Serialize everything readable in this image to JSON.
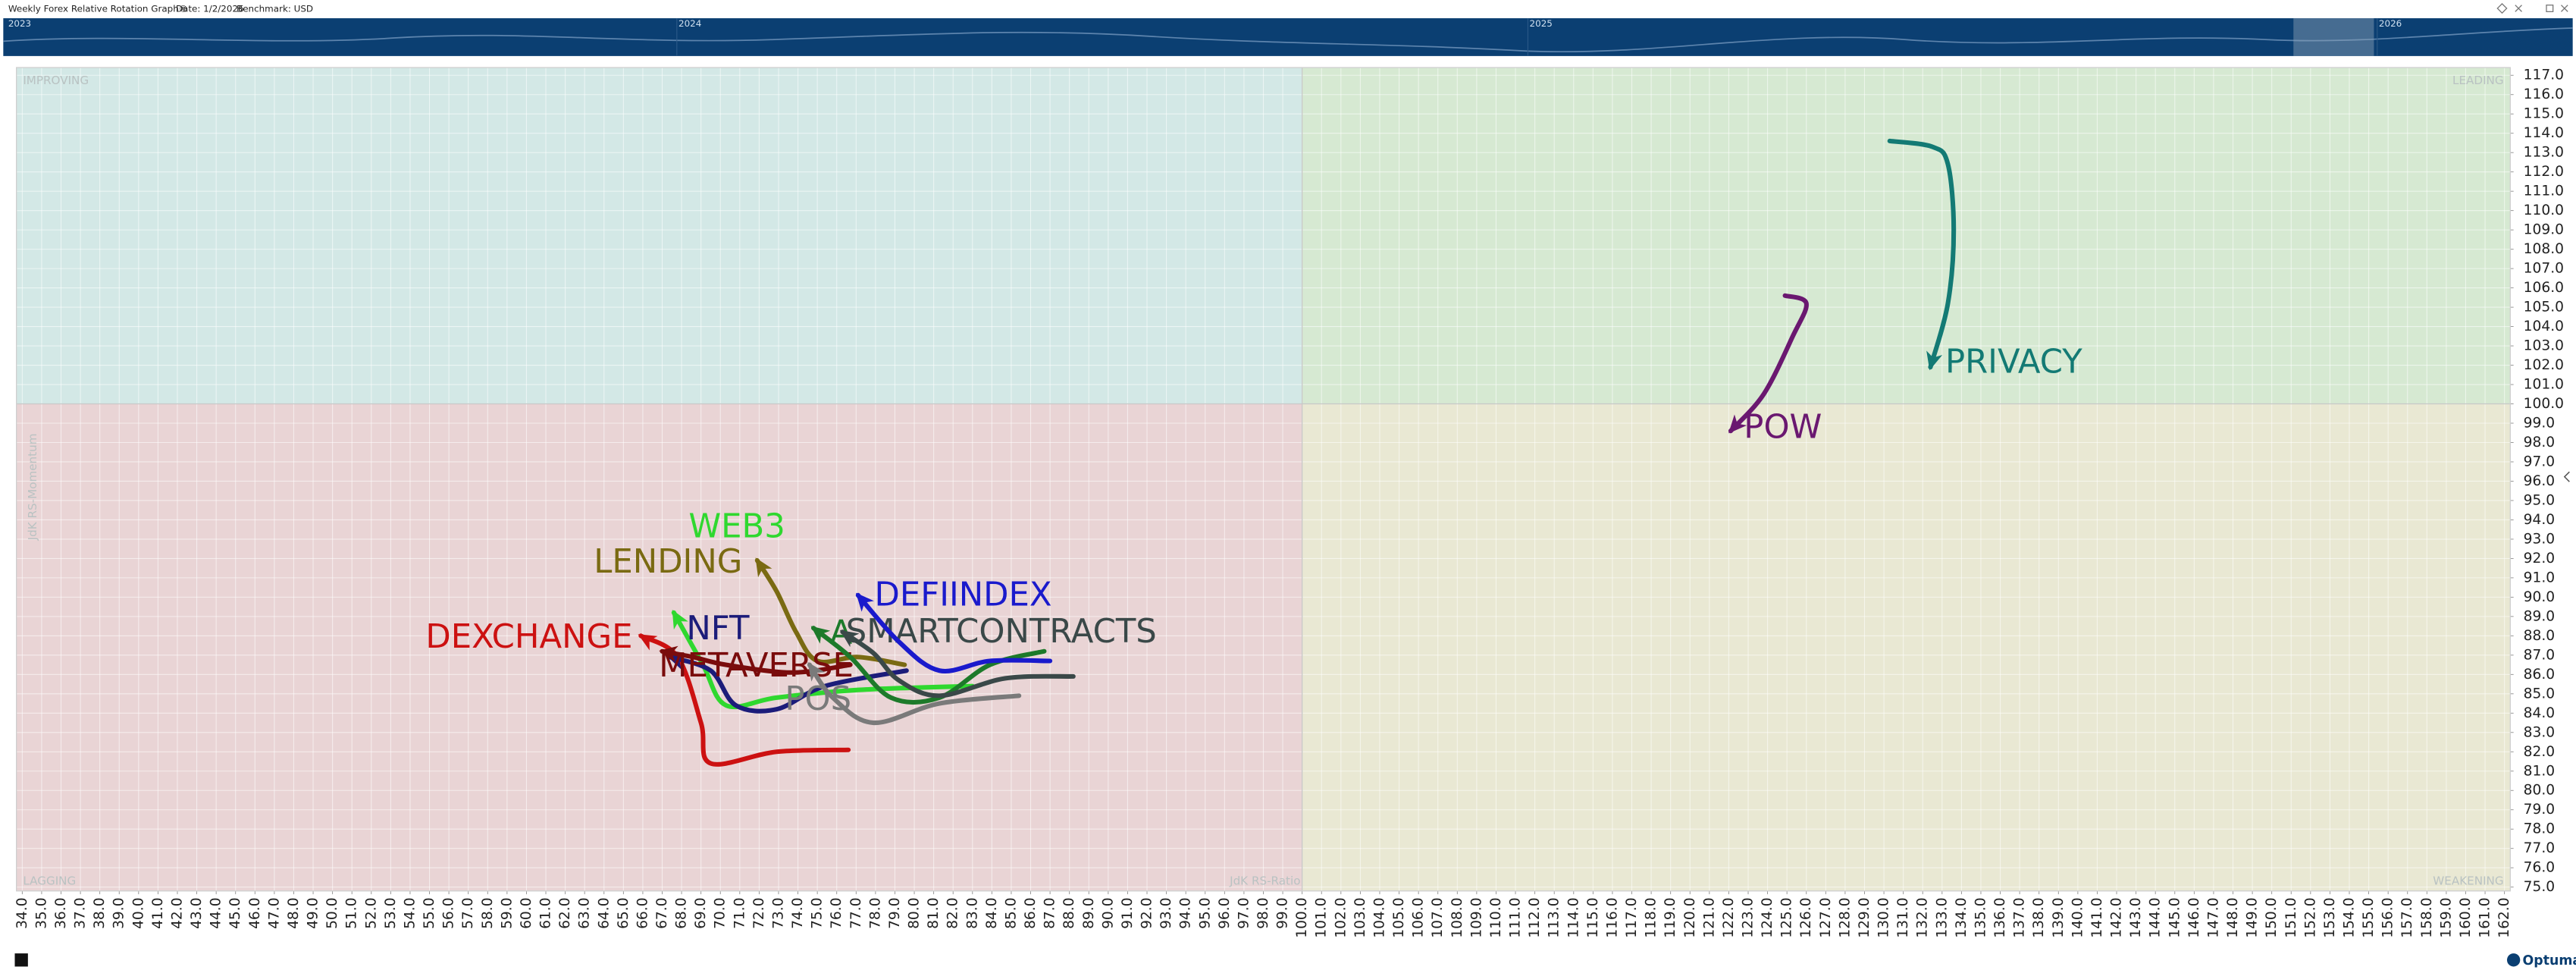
{
  "header": {
    "title": "Weekly Forex Relative Rotation Graph®",
    "date": "Date: 1/2/2026",
    "benchmark": "Benchmark:  USD"
  },
  "navigator": {
    "years": [
      "2023",
      "2024",
      "2025",
      "2026"
    ]
  },
  "chart_data": {
    "type": "rrg",
    "x_label": "JdK RS-Ratio",
    "y_label": "JdK RS-Momentum",
    "quadrants": {
      "improving": "IMPROVING",
      "leading": "LEADING",
      "lagging": "LAGGING",
      "weakening": "WEAKENING"
    },
    "center": [
      100,
      100
    ],
    "xlim": [
      33.7,
      162.3
    ],
    "ylim": [
      74.8,
      117.4
    ],
    "grid": true,
    "xticks": [
      {
        "value": 34,
        "label": "34.0"
      },
      {
        "value": 35,
        "label": "35.0"
      },
      {
        "value": 36,
        "label": "36.0"
      },
      {
        "value": 37,
        "label": "37.0"
      },
      {
        "value": 38,
        "label": "38.0"
      },
      {
        "value": 39,
        "label": "39.0"
      },
      {
        "value": 40,
        "label": "40.0"
      },
      {
        "value": 41,
        "label": "41.0"
      },
      {
        "value": 42,
        "label": "42.0"
      },
      {
        "value": 43,
        "label": "43.0"
      },
      {
        "value": 44,
        "label": "44.0"
      },
      {
        "value": 45,
        "label": "45.0"
      },
      {
        "value": 46,
        "label": "46.0"
      },
      {
        "value": 47,
        "label": "47.0"
      },
      {
        "value": 48,
        "label": "48.0"
      },
      {
        "value": 49,
        "label": "49.0"
      },
      {
        "value": 50,
        "label": "50.0"
      },
      {
        "value": 51,
        "label": "51.0"
      },
      {
        "value": 52,
        "label": "52.0"
      },
      {
        "value": 53,
        "label": "53.0"
      },
      {
        "value": 54,
        "label": "54.0"
      },
      {
        "value": 55,
        "label": "55.0"
      },
      {
        "value": 56,
        "label": "56.0"
      },
      {
        "value": 57,
        "label": "57.0"
      },
      {
        "value": 58,
        "label": "58.0"
      },
      {
        "value": 59,
        "label": "59.0"
      },
      {
        "value": 60,
        "label": "60.0"
      },
      {
        "value": 61,
        "label": "61.0"
      },
      {
        "value": 62,
        "label": "62.0"
      },
      {
        "value": 63,
        "label": "63.0"
      },
      {
        "value": 64,
        "label": "64.0"
      },
      {
        "value": 65,
        "label": "65.0"
      },
      {
        "value": 66,
        "label": "66.0"
      },
      {
        "value": 67,
        "label": "67.0"
      },
      {
        "value": 68,
        "label": "68.0"
      },
      {
        "value": 69,
        "label": "69.0"
      },
      {
        "value": 70,
        "label": "70.0"
      },
      {
        "value": 71,
        "label": "71.0"
      },
      {
        "value": 72,
        "label": "72.0"
      },
      {
        "value": 73,
        "label": "73.0"
      },
      {
        "value": 74,
        "label": "74.0"
      },
      {
        "value": 75,
        "label": "75.0"
      },
      {
        "value": 76,
        "label": "76.0"
      },
      {
        "value": 77,
        "label": "77.0"
      },
      {
        "value": 78,
        "label": "78.0"
      },
      {
        "value": 79,
        "label": "79.0"
      },
      {
        "value": 80,
        "label": "80.0"
      },
      {
        "value": 81,
        "label": "81.0"
      },
      {
        "value": 82,
        "label": "82.0"
      },
      {
        "value": 83,
        "label": "83.0"
      },
      {
        "value": 84,
        "label": "84.0"
      },
      {
        "value": 85,
        "label": "85.0"
      },
      {
        "value": 86,
        "label": "86.0"
      },
      {
        "value": 87,
        "label": "87.0"
      },
      {
        "value": 88,
        "label": "88.0"
      },
      {
        "value": 89,
        "label": "89.0"
      },
      {
        "value": 90,
        "label": "90.0"
      },
      {
        "value": 91,
        "label": "91.0"
      },
      {
        "value": 92,
        "label": "92.0"
      },
      {
        "value": 93,
        "label": "93.0"
      },
      {
        "value": 94,
        "label": "94.0"
      },
      {
        "value": 95,
        "label": "95.0"
      },
      {
        "value": 96,
        "label": "96.0"
      },
      {
        "value": 97,
        "label": "97.0"
      },
      {
        "value": 98,
        "label": "98.0"
      },
      {
        "value": 99,
        "label": "99.0"
      },
      {
        "value": 100,
        "label": "100.0"
      },
      {
        "value": 101,
        "label": "101.0"
      },
      {
        "value": 102,
        "label": "102.0"
      },
      {
        "value": 103,
        "label": "103.0"
      },
      {
        "value": 104,
        "label": "104.0"
      },
      {
        "value": 105,
        "label": "105.0"
      },
      {
        "value": 106,
        "label": "106.0"
      },
      {
        "value": 107,
        "label": "107.0"
      },
      {
        "value": 108,
        "label": "108.0"
      },
      {
        "value": 109,
        "label": "109.0"
      },
      {
        "value": 110,
        "label": "110.0"
      },
      {
        "value": 111,
        "label": "111.0"
      },
      {
        "value": 112,
        "label": "112.0"
      },
      {
        "value": 113,
        "label": "113.0"
      },
      {
        "value": 114,
        "label": "114.0"
      },
      {
        "value": 115,
        "label": "115.0"
      },
      {
        "value": 116,
        "label": "116.0"
      },
      {
        "value": 117,
        "label": "117.0"
      },
      {
        "value": 118,
        "label": "118.0"
      },
      {
        "value": 119,
        "label": "119.0"
      },
      {
        "value": 120,
        "label": "120.0"
      },
      {
        "value": 121,
        "label": "121.0"
      },
      {
        "value": 122,
        "label": "122.0"
      },
      {
        "value": 123,
        "label": "123.0"
      },
      {
        "value": 124,
        "label": "124.0"
      },
      {
        "value": 125,
        "label": "125.0"
      },
      {
        "value": 126,
        "label": "126.0"
      },
      {
        "value": 127,
        "label": "127.0"
      },
      {
        "value": 128,
        "label": "128.0"
      },
      {
        "value": 129,
        "label": "129.0"
      },
      {
        "value": 130,
        "label": "130.0"
      },
      {
        "value": 131,
        "label": "131.0"
      },
      {
        "value": 132,
        "label": "132.0"
      },
      {
        "value": 133,
        "label": "133.0"
      },
      {
        "value": 134,
        "label": "134.0"
      },
      {
        "value": 135,
        "label": "135.0"
      },
      {
        "value": 136,
        "label": "136.0"
      },
      {
        "value": 137,
        "label": "137.0"
      },
      {
        "value": 138,
        "label": "138.0"
      },
      {
        "value": 139,
        "label": "139.0"
      },
      {
        "value": 140,
        "label": "140.0"
      },
      {
        "value": 141,
        "label": "141.0"
      },
      {
        "value": 142,
        "label": "142.0"
      },
      {
        "value": 143,
        "label": "143.0"
      },
      {
        "value": 144,
        "label": "144.0"
      },
      {
        "value": 145,
        "label": "145.0"
      },
      {
        "value": 146,
        "label": "146.0"
      },
      {
        "value": 147,
        "label": "147.0"
      },
      {
        "value": 148,
        "label": "148.0"
      },
      {
        "value": 149,
        "label": "149.0"
      },
      {
        "value": 150,
        "label": "150.0"
      },
      {
        "value": 151,
        "label": "151.0"
      },
      {
        "value": 152,
        "label": "152.0"
      },
      {
        "value": 153,
        "label": "153.0"
      },
      {
        "value": 154,
        "label": "154.0"
      },
      {
        "value": 155,
        "label": "155.0"
      },
      {
        "value": 156,
        "label": "156.0"
      },
      {
        "value": 157,
        "label": "157.0"
      },
      {
        "value": 158,
        "label": "158.0"
      },
      {
        "value": 159,
        "label": "159.0"
      },
      {
        "value": 160,
        "label": "160.0"
      },
      {
        "value": 161,
        "label": "161.0"
      },
      {
        "value": 162,
        "label": "162.0"
      }
    ],
    "yticks": [
      {
        "value": 75,
        "label": "75.0"
      },
      {
        "value": 76,
        "label": "76.0"
      },
      {
        "value": 77,
        "label": "77.0"
      },
      {
        "value": 78,
        "label": "78.0"
      },
      {
        "value": 79,
        "label": "79.0"
      },
      {
        "value": 80,
        "label": "80.0"
      },
      {
        "value": 81,
        "label": "81.0"
      },
      {
        "value": 82,
        "label": "82.0"
      },
      {
        "value": 83,
        "label": "83.0"
      },
      {
        "value": 84,
        "label": "84.0"
      },
      {
        "value": 85,
        "label": "85.0"
      },
      {
        "value": 86,
        "label": "86.0"
      },
      {
        "value": 87,
        "label": "87.0"
      },
      {
        "value": 88,
        "label": "88.0"
      },
      {
        "value": 89,
        "label": "89.0"
      },
      {
        "value": 90,
        "label": "90.0"
      },
      {
        "value": 91,
        "label": "91.0"
      },
      {
        "value": 92,
        "label": "92.0"
      },
      {
        "value": 93,
        "label": "93.0"
      },
      {
        "value": 94,
        "label": "94.0"
      },
      {
        "value": 95,
        "label": "95.0"
      },
      {
        "value": 96,
        "label": "96.0"
      },
      {
        "value": 97,
        "label": "97.0"
      },
      {
        "value": 98,
        "label": "98.0"
      },
      {
        "value": 99,
        "label": "99.0"
      },
      {
        "value": 100,
        "label": "100.0"
      },
      {
        "value": 101,
        "label": "101.0"
      },
      {
        "value": 102,
        "label": "102.0"
      },
      {
        "value": 103,
        "label": "103.0"
      },
      {
        "value": 104,
        "label": "104.0"
      },
      {
        "value": 105,
        "label": "105.0"
      },
      {
        "value": 106,
        "label": "106.0"
      },
      {
        "value": 107,
        "label": "107.0"
      },
      {
        "value": 108,
        "label": "108.0"
      },
      {
        "value": 109,
        "label": "109.0"
      },
      {
        "value": 110,
        "label": "110.0"
      },
      {
        "value": 111,
        "label": "111.0"
      },
      {
        "value": 112,
        "label": "112.0"
      },
      {
        "value": 113,
        "label": "113.0"
      },
      {
        "value": 114,
        "label": "114.0"
      },
      {
        "value": 115,
        "label": "115.0"
      },
      {
        "value": 116,
        "label": "116.0"
      },
      {
        "value": 117,
        "label": "117.0"
      }
    ],
    "series": [
      {
        "name": "PRIVACY",
        "color": "#137a74",
        "x": [
          130.3,
          132.5,
          133.3,
          133.6,
          133.3,
          132.4
        ],
        "y": [
          113.6,
          113.3,
          112.4,
          109.0,
          105.2,
          101.9
        ]
      },
      {
        "name": "POW",
        "color": "#6a1870",
        "x": [
          124.9,
          126.0,
          125.3,
          123.8,
          122.1
        ],
        "y": [
          105.6,
          105.2,
          103.5,
          100.5,
          98.6
        ]
      },
      {
        "name": "WEB3",
        "color": "#2fd82f",
        "x": [
          83.0,
          77.1,
          72.9,
          70.3,
          69.1,
          67.6
        ],
        "y": [
          85.4,
          85.2,
          84.8,
          84.4,
          86.5,
          89.2
        ]
      },
      {
        "name": "LENDING",
        "color": "#7a6a12",
        "x": [
          79.5,
          77.1,
          75.0,
          73.9,
          72.9,
          71.9
        ],
        "y": [
          86.5,
          86.9,
          86.7,
          88.2,
          90.3,
          91.9
        ]
      },
      {
        "name": "DEXCHANGE",
        "color": "#cc1111",
        "x": [
          76.6,
          72.9,
          69.5,
          69.0,
          67.8,
          65.9
        ],
        "y": [
          82.1,
          82.0,
          81.4,
          83.5,
          86.9,
          88.0
        ]
      },
      {
        "name": "NFT",
        "color": "#1c1c7a",
        "x": [
          79.6,
          75.4,
          72.9,
          70.8,
          69.5,
          67.4
        ],
        "y": [
          86.2,
          85.4,
          84.2,
          84.4,
          86.2,
          86.9
        ]
      },
      {
        "name": "METAVERSE",
        "color": "#7a0c0c",
        "x": [
          76.7,
          73.7,
          70.3,
          68.6,
          67.0
        ],
        "y": [
          86.5,
          86.1,
          86.5,
          86.9,
          87.2
        ]
      },
      {
        "name": "POS",
        "color": "#7a7a7a",
        "x": [
          85.4,
          81.3,
          77.9,
          75.8,
          74.6
        ],
        "y": [
          84.9,
          84.5,
          83.5,
          84.8,
          86.5
        ]
      },
      {
        "name": "A",
        "color": "#1d7a2a",
        "x": [
          86.7,
          83.9,
          81.3,
          78.8,
          76.7,
          74.8
        ],
        "y": [
          87.2,
          86.5,
          84.8,
          84.8,
          86.9,
          88.4
        ]
      },
      {
        "name": "SMARTCONTRACTS",
        "color": "#3a4848",
        "x": [
          88.2,
          84.7,
          81.3,
          79.2,
          77.9,
          76.3
        ],
        "y": [
          85.9,
          85.8,
          84.9,
          85.7,
          87.1,
          88.2
        ]
      },
      {
        "name": "DEFIINDEX",
        "color": "#1a1acc",
        "x": [
          87.0,
          83.9,
          81.3,
          79.2,
          77.1
        ],
        "y": [
          86.7,
          86.7,
          86.2,
          87.7,
          90.1
        ]
      }
    ]
  },
  "footer": {
    "brand": "Optuma"
  }
}
